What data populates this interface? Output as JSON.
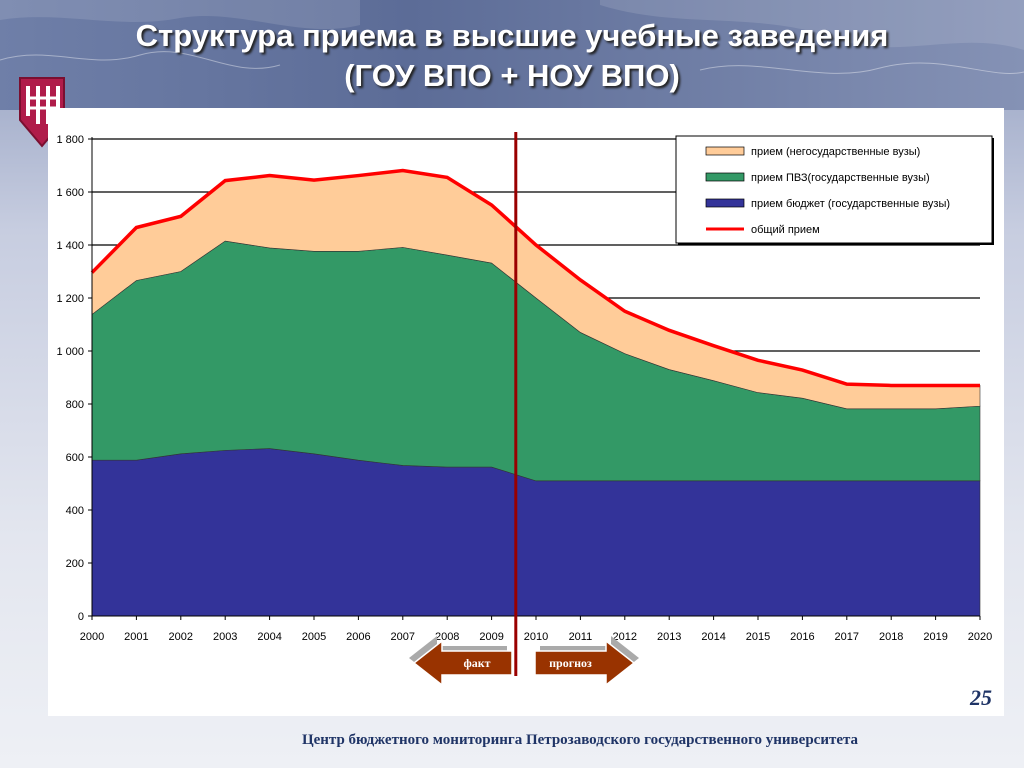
{
  "header": {
    "title_line1": "Структура приема в высшие учебные заведения",
    "title_line2": "(ГОУ ВПО + НОУ ВПО)"
  },
  "colors": {
    "budget": "#333399",
    "pvz": "#339966",
    "nongov": "#ffcc99",
    "total": "#ff0000",
    "divider": "#990000",
    "arrow": "#993300"
  },
  "arrows": {
    "fact_label": "факт",
    "forecast_label": "прогноз"
  },
  "page_number": "25",
  "footer_text": "Центр бюджетного мониторинга Петрозаводского государственного университета",
  "chart_data": {
    "type": "area",
    "x": [
      "2000",
      "2001",
      "2002",
      "2003",
      "2004",
      "2005",
      "2006",
      "2007",
      "2008",
      "2009",
      "2010",
      "2011",
      "2012",
      "2013",
      "2014",
      "2015",
      "2016",
      "2017",
      "2018",
      "2019",
      "2020"
    ],
    "yticks": [
      "0",
      "200",
      "400",
      "600",
      "800",
      "1 000",
      "1 200",
      "1 400",
      "1 600",
      "1 800"
    ],
    "ylim": [
      0,
      1800
    ],
    "stacked": true,
    "grid": true,
    "legend_position": "top-right",
    "divider_between": [
      "2009",
      "2010"
    ],
    "series": [
      {
        "name": "прием бюджет (государственные вузы)",
        "color": "#333399",
        "values": [
          588,
          588,
          612,
          625,
          632,
          612,
          588,
          568,
          562,
          562,
          510,
          510,
          510,
          510,
          510,
          510,
          510,
          510,
          510,
          510,
          510
        ]
      },
      {
        "name": "прием ПВЗ(государственные вузы)",
        "color": "#339966",
        "values": [
          550,
          678,
          688,
          790,
          757,
          764,
          788,
          823,
          800,
          770,
          690,
          560,
          480,
          420,
          378,
          333,
          312,
          272,
          272,
          272,
          282
        ]
      },
      {
        "name": "прием  (негосударственные вузы)",
        "color": "#ffcc99",
        "values": [
          158,
          200,
          208,
          228,
          273,
          269,
          286,
          290,
          293,
          219,
          200,
          198,
          160,
          148,
          132,
          122,
          106,
          93,
          88,
          88,
          78
        ]
      },
      {
        "name": "общий прием",
        "color": "#ff0000",
        "type": "line",
        "values": [
          1296,
          1466,
          1508,
          1643,
          1662,
          1645,
          1662,
          1681,
          1655,
          1551,
          1400,
          1268,
          1150,
          1078,
          1020,
          965,
          928,
          875,
          870,
          870,
          870
        ]
      }
    ],
    "legend_order": [
      "прием  (негосударственные вузы)",
      "прием ПВЗ(государственные вузы)",
      "прием бюджет (государственные вузы)",
      "общий прием"
    ]
  }
}
